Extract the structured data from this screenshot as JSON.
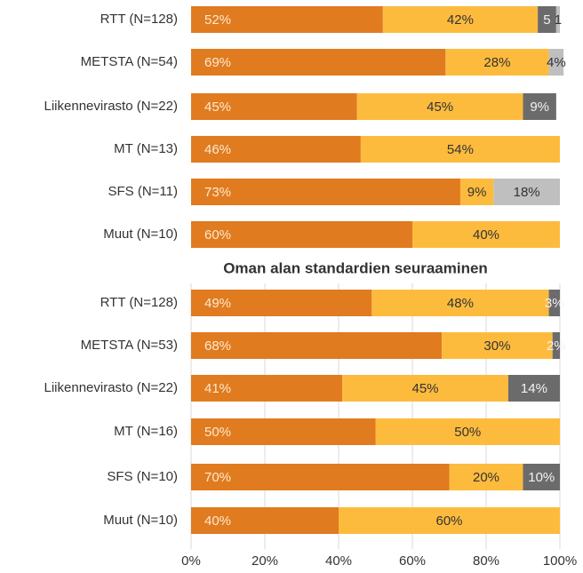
{
  "chart_data": [
    {
      "type": "stacked-barh",
      "categories": [
        "RTT (N=128)",
        "METSTA (N=54)",
        "Liikennevirasto (N=22)",
        "MT (N=13)",
        "SFS (N=11)",
        "Muut (N=10)"
      ],
      "series": [
        {
          "color": "#e07b1f",
          "values": [
            52,
            69,
            45,
            46,
            73,
            60
          ],
          "value_labels": [
            "52%",
            "69%",
            "45%",
            "46%",
            "73%",
            "60%"
          ]
        },
        {
          "color": "#fdbb3e",
          "values": [
            42,
            28,
            45,
            54,
            9,
            40
          ],
          "value_labels": [
            "42%",
            "28%",
            "45%",
            "54%",
            "9%",
            "40%"
          ]
        },
        {
          "color": "#6b6b6b",
          "values": [
            5,
            null,
            9,
            null,
            null,
            null
          ],
          "value_labels": [
            "5",
            null,
            "9%",
            null,
            null,
            null
          ]
        },
        {
          "color": "#bfbfbf",
          "values": [
            1,
            4,
            null,
            null,
            18,
            null
          ],
          "value_labels": [
            "1",
            "4%",
            null,
            null,
            "18%",
            null
          ]
        }
      ],
      "xlim": [
        0,
        100
      ]
    },
    {
      "type": "stacked-barh",
      "title": "Oman alan standardien seuraaminen",
      "categories": [
        "RTT (N=128)",
        "METSTA (N=53)",
        "Liikennevirasto (N=22)",
        "MT (N=16)",
        "SFS (N=10)",
        "Muut (N=10)"
      ],
      "series": [
        {
          "color": "#e07b1f",
          "values": [
            49,
            68,
            41,
            50,
            70,
            40
          ],
          "value_labels": [
            "49%",
            "68%",
            "41%",
            "50%",
            "70%",
            "40%"
          ]
        },
        {
          "color": "#fdbb3e",
          "values": [
            48,
            30,
            45,
            50,
            20,
            60
          ],
          "value_labels": [
            "48%",
            "30%",
            "45%",
            "50%",
            "20%",
            "60%"
          ]
        },
        {
          "color": "#6b6b6b",
          "values": [
            3,
            2,
            14,
            null,
            10,
            null
          ],
          "value_labels": [
            "3%",
            "2%",
            "14%",
            null,
            "10%",
            null
          ]
        }
      ],
      "xlim": [
        0,
        100
      ],
      "xticks": [
        {
          "value": 0,
          "label": "0%"
        },
        {
          "value": 20,
          "label": "20%"
        },
        {
          "value": 40,
          "label": "40%"
        },
        {
          "value": 60,
          "label": "60%"
        },
        {
          "value": 80,
          "label": "80%"
        },
        {
          "value": 100,
          "label": "100%"
        }
      ]
    }
  ]
}
